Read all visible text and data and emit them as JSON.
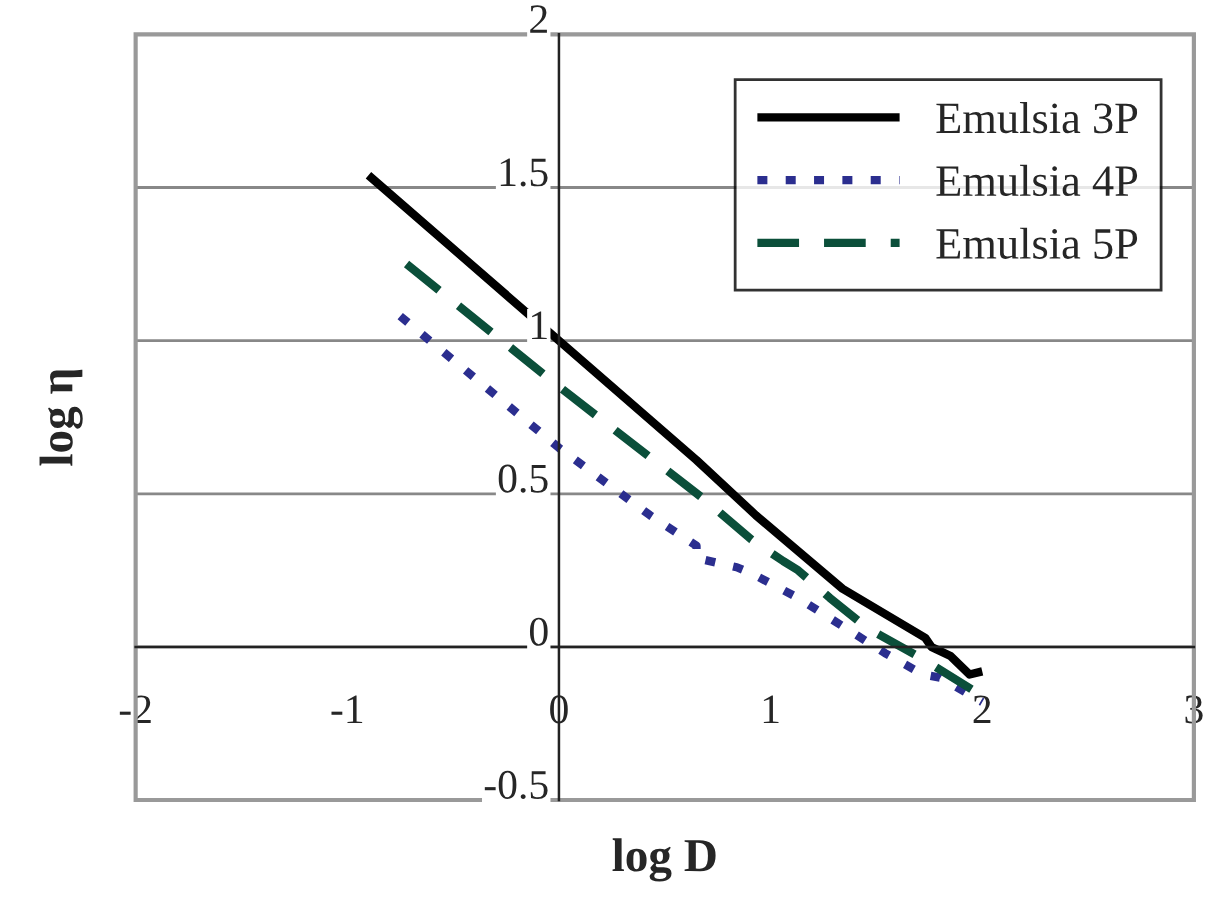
{
  "chart_data": {
    "type": "line",
    "xlabel": "log D",
    "ylabel": "log η",
    "xlim": [
      -2,
      3
    ],
    "xticks": [
      -2,
      -1,
      0,
      1,
      2,
      3
    ],
    "ylim": [
      -0.5,
      2
    ],
    "yticks": [
      -0.5,
      0,
      0.5,
      1,
      1.5,
      2
    ],
    "grid": "y",
    "legend": "top right",
    "series": [
      {
        "name": "Emulsia 3P",
        "color": "#000000",
        "line_style": "solid",
        "x": [
          -0.9,
          0,
          0.65,
          0.93,
          1.34,
          1.73,
          1.76,
          1.85,
          1.94,
          2.0
        ],
        "values": [
          1.54,
          1.0,
          0.61,
          0.43,
          0.19,
          0.03,
          0.0,
          -0.03,
          -0.09,
          -0.08
        ]
      },
      {
        "name": "Emulsia 4P",
        "color": "#2b2e8f",
        "line_style": "dotted",
        "x": [
          -0.75,
          0,
          0.43,
          0.65,
          0.65,
          0.84,
          0.91,
          1.13,
          1.54,
          1.72,
          1.8,
          2.0
        ],
        "values": [
          1.08,
          0.65,
          0.43,
          0.33,
          0.29,
          0.26,
          0.24,
          0.16,
          -0.02,
          -0.09,
          -0.1,
          -0.18
        ]
      },
      {
        "name": "Emulsia 5P",
        "color": "#0b4f3a",
        "line_style": "dashed",
        "x": [
          -0.72,
          0,
          0.69,
          0.91,
          1.06,
          1.13,
          1.28,
          1.46,
          1.72,
          2.0
        ],
        "values": [
          1.25,
          0.85,
          0.48,
          0.35,
          0.28,
          0.25,
          0.16,
          0.06,
          -0.04,
          -0.16
        ]
      }
    ]
  }
}
